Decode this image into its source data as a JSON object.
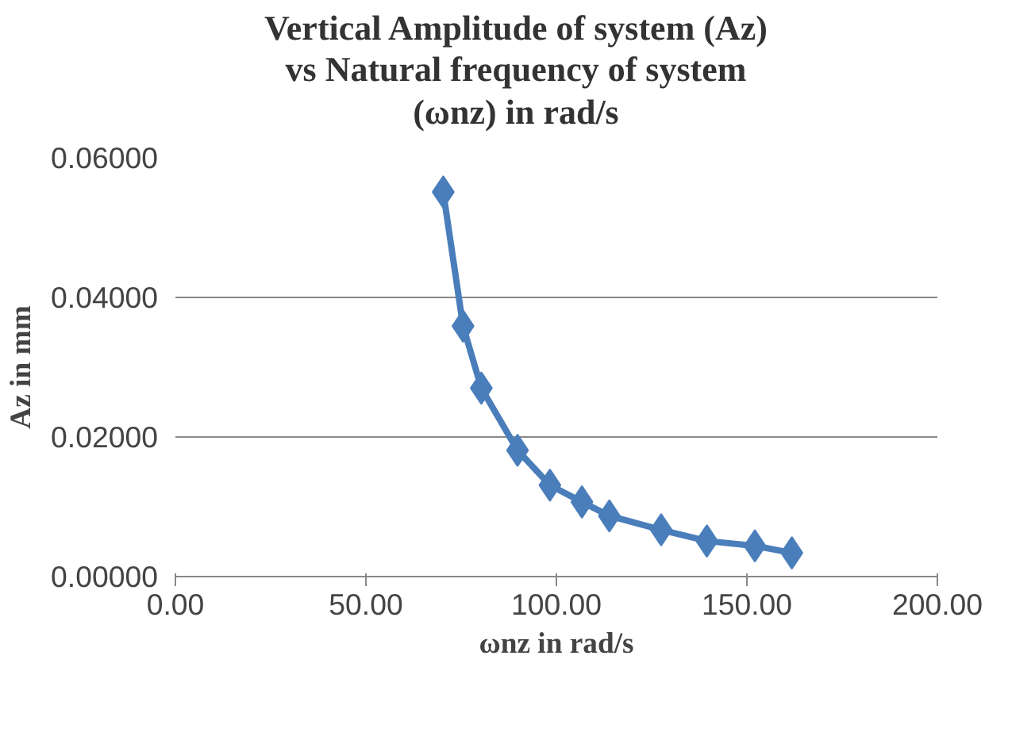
{
  "chart_data": {
    "type": "line",
    "title": "Vertical Amplitude of system (Az)\nvs Natural frequency of system\n(ωnz) in rad/s",
    "xlabel": "ωnz in rad/s",
    "ylabel": "Az in mm",
    "series": [
      {
        "color": "#4a7ebb",
        "x": [
          70.3,
          75.5,
          80.3,
          89.8,
          98.3,
          106.7,
          113.9,
          127.5,
          139.5,
          152.1,
          161.8
        ],
        "values": [
          0.0551,
          0.0359,
          0.027,
          0.0181,
          0.0131,
          0.0107,
          0.0087,
          0.0067,
          0.0051,
          0.0044,
          0.0034
        ]
      }
    ],
    "xlim": [
      0,
      200
    ],
    "xticks": [
      {
        "value": 0,
        "label": "0.00"
      },
      {
        "value": 50,
        "label": "50.00"
      },
      {
        "value": 100,
        "label": "100.00"
      },
      {
        "value": 150,
        "label": "150.00"
      },
      {
        "value": 200,
        "label": "200.00"
      }
    ],
    "ylim": [
      0,
      0.06
    ],
    "yticks": [
      {
        "value": 0,
        "label": "0.00000"
      },
      {
        "value": 0.02,
        "label": "0.02000"
      },
      {
        "value": 0.04,
        "label": "0.04000"
      },
      {
        "value": 0.06,
        "label": "0.06000"
      }
    ],
    "grid": "y",
    "marker": "diamond",
    "line_style": "solid"
  }
}
